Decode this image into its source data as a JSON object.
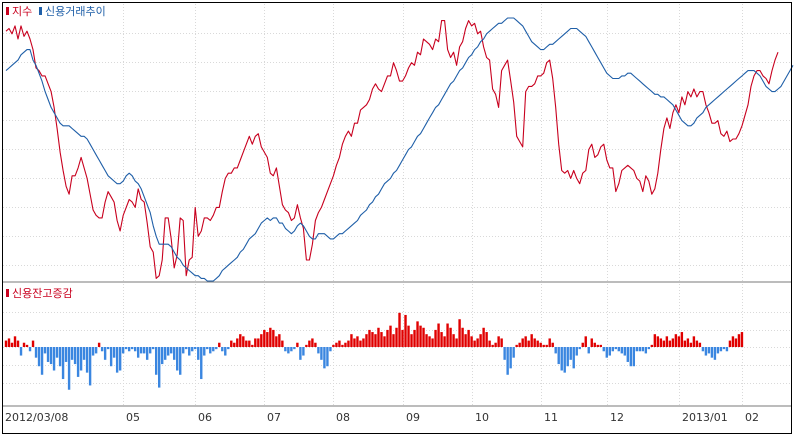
{
  "colors": {
    "index_line": "#c8001e",
    "credit_line": "#1f5fa8",
    "pos_bar": "#e00000",
    "neg_bar": "#3a86e0",
    "grid": "#d9d9d9",
    "frame": "#000000",
    "divider": "#7a7a7a"
  },
  "chart_data": [
    {
      "type": "line",
      "legend_placement": "top-left",
      "grid": true,
      "x_ticks": [
        "2012/03/08",
        "05",
        "06",
        "07",
        "08",
        "09",
        "10",
        "11",
        "12",
        "2013/01",
        "02"
      ],
      "x_tick_index": [
        0,
        39,
        63,
        86,
        109,
        132,
        155,
        178,
        200,
        224,
        245
      ],
      "ylim": [
        0,
        100
      ],
      "series": [
        {
          "name": "지수",
          "values": [
            95,
            96,
            94,
            97,
            92,
            97,
            93,
            95,
            92,
            88,
            81,
            80,
            78,
            78,
            75,
            72,
            66,
            58,
            49,
            42,
            36,
            33,
            40,
            40,
            43,
            47,
            43,
            39,
            33,
            27,
            25,
            24,
            24,
            30,
            34,
            32,
            30,
            23,
            19,
            25,
            28,
            31,
            30,
            28,
            35,
            31,
            30,
            22,
            13,
            11,
            1,
            2,
            8,
            24,
            24,
            16,
            5,
            10,
            24,
            23,
            2,
            8,
            9,
            28,
            17,
            19,
            24,
            24,
            23,
            25,
            28,
            28,
            34,
            39,
            41,
            41,
            43,
            43,
            46,
            49,
            52,
            55,
            52,
            55,
            56,
            51,
            49,
            47,
            41,
            40,
            43,
            36,
            29,
            27,
            26,
            23,
            24,
            29,
            24,
            20,
            8,
            8,
            14,
            23,
            26,
            28,
            31,
            34,
            37,
            40,
            44,
            47,
            52,
            55,
            57,
            55,
            60,
            60,
            65,
            66,
            67,
            69,
            73,
            75,
            73,
            72,
            75,
            78,
            78,
            83,
            80,
            76,
            76,
            78,
            81,
            83,
            82,
            87,
            86,
            92,
            91,
            90,
            88,
            92,
            91,
            99,
            99,
            88,
            85,
            87,
            82,
            89,
            91,
            96,
            99,
            97,
            98,
            94,
            95,
            89,
            85,
            84,
            73,
            71,
            66,
            80,
            82,
            84,
            76,
            68,
            55,
            53,
            51,
            72,
            74,
            74,
            75,
            78,
            78,
            79,
            83,
            84,
            77,
            66,
            52,
            42,
            41,
            42,
            39,
            42,
            39,
            37,
            41,
            42,
            50,
            52,
            47,
            48,
            51,
            52,
            46,
            43,
            43,
            34,
            37,
            42,
            43,
            44,
            43,
            42,
            39,
            38,
            34,
            40,
            38,
            33,
            35,
            41,
            50,
            58,
            62,
            58,
            64,
            67,
            64,
            70,
            67,
            72,
            70,
            73,
            70,
            72,
            72,
            67,
            64,
            60,
            60,
            61,
            56,
            55,
            57,
            53,
            54,
            54,
            56,
            59,
            63,
            67,
            74,
            78,
            80,
            80,
            78,
            77,
            75,
            80,
            84,
            87
          ],
          "color_key": "index_line"
        },
        {
          "name": "신용거래추이",
          "values": [
            80,
            81,
            82,
            83,
            84,
            86,
            87,
            88,
            88,
            84,
            82,
            79,
            76,
            72,
            69,
            66,
            64,
            62,
            60,
            59,
            59,
            59,
            58,
            57,
            56,
            55,
            55,
            54,
            52,
            50,
            48,
            46,
            44,
            42,
            40,
            39,
            38,
            37,
            37,
            38,
            40,
            41,
            40,
            38,
            37,
            35,
            32,
            29,
            26,
            21,
            17,
            14,
            14,
            14,
            14,
            13,
            11,
            9,
            8,
            6,
            5,
            4,
            3,
            2,
            2,
            1,
            1,
            0,
            0,
            0,
            1,
            2,
            4,
            5,
            6,
            7,
            8,
            9,
            11,
            12,
            14,
            16,
            17,
            18,
            20,
            22,
            23,
            24,
            23,
            24,
            24,
            22,
            22,
            20,
            19,
            18,
            19,
            21,
            22,
            21,
            19,
            17,
            16,
            16,
            18,
            18,
            18,
            17,
            16,
            16,
            17,
            18,
            18,
            19,
            20,
            21,
            22,
            23,
            25,
            26,
            27,
            29,
            30,
            32,
            33,
            35,
            37,
            38,
            39,
            41,
            42,
            44,
            46,
            48,
            50,
            51,
            53,
            55,
            56,
            58,
            60,
            62,
            64,
            66,
            67,
            69,
            71,
            73,
            75,
            76,
            78,
            80,
            81,
            83,
            85,
            86,
            88,
            89,
            91,
            92,
            94,
            95,
            96,
            97,
            98,
            98,
            99,
            100,
            100,
            100,
            99,
            98,
            97,
            95,
            93,
            91,
            90,
            89,
            88,
            88,
            89,
            90,
            90,
            91,
            92,
            93,
            94,
            95,
            96,
            96,
            96,
            95,
            94,
            93,
            91,
            89,
            87,
            85,
            83,
            81,
            79,
            78,
            77,
            77,
            77,
            78,
            78,
            79,
            79,
            78,
            77,
            76,
            75,
            74,
            73,
            72,
            71,
            71,
            70,
            70,
            69,
            68,
            67,
            65,
            63,
            61,
            60,
            59,
            59,
            60,
            62,
            63,
            64,
            66,
            67,
            68,
            69,
            70,
            71,
            72,
            73,
            74,
            75,
            76,
            77,
            78,
            79,
            80,
            80,
            80,
            79,
            78,
            76,
            74,
            73,
            72,
            72,
            73,
            74,
            76,
            78,
            80,
            82
          ],
          "color_key": "credit_line"
        }
      ]
    },
    {
      "type": "bar",
      "legend_placement": "top-left",
      "grid": true,
      "x_ticks": [
        "2012/03/08",
        "05",
        "06",
        "07",
        "08",
        "09",
        "10",
        "11",
        "12",
        "2013/01",
        "02"
      ],
      "ylim": [
        -2.2,
        2.2
      ],
      "series": [
        {
          "name": "신용잔고증감",
          "values": [
            0.3,
            0.4,
            0.2,
            0.5,
            0.3,
            -0.4,
            0.2,
            0.1,
            -0.2,
            0.3,
            -0.5,
            -0.9,
            -1.3,
            -0.3,
            -0.7,
            -0.8,
            -1.1,
            -0.5,
            -0.9,
            -1.5,
            -0.7,
            -2.0,
            -0.6,
            -0.8,
            -1.4,
            -1.1,
            -0.6,
            -1.2,
            -1.8,
            -0.4,
            -0.3,
            0.2,
            -0.2,
            -0.6,
            -0.1,
            -0.9,
            -0.5,
            -1.2,
            -1.1,
            -0.3,
            -0.1,
            -0.2,
            -0.1,
            -0.2,
            -0.5,
            -0.3,
            -0.3,
            -0.6,
            -0.3,
            -0.1,
            -1.3,
            -1.9,
            -0.8,
            -0.6,
            -0.4,
            -0.3,
            -0.6,
            -1.1,
            -1.3,
            -0.3,
            -0.1,
            -0.4,
            -0.2,
            -0.1,
            -0.6,
            -1.5,
            -0.4,
            -0.1,
            -0.3,
            -0.2,
            -0.1,
            0.2,
            -0.2,
            -0.4,
            -0.1,
            0.3,
            0.2,
            0.4,
            0.6,
            0.5,
            0.3,
            0.3,
            0.1,
            0.4,
            0.4,
            0.6,
            0.8,
            0.7,
            0.9,
            0.8,
            0.5,
            0.6,
            0.3,
            -0.2,
            -0.3,
            -0.2,
            -0.1,
            0.2,
            -0.6,
            -0.4,
            0.1,
            0.3,
            0.4,
            0.2,
            -0.3,
            -0.6,
            -1.0,
            -0.9,
            -0.2,
            0.1,
            0.2,
            0.3,
            0.1,
            0.2,
            0.3,
            0.6,
            0.4,
            0.5,
            0.3,
            0.4,
            0.6,
            0.8,
            0.7,
            0.6,
            0.9,
            0.7,
            0.5,
            0.8,
            1.0,
            0.6,
            0.9,
            1.6,
            0.8,
            1.5,
            1.0,
            0.6,
            0.8,
            1.2,
            1.0,
            0.9,
            0.6,
            0.5,
            0.4,
            0.8,
            1.1,
            0.7,
            0.5,
            1.1,
            0.9,
            0.6,
            0.4,
            1.3,
            0.9,
            0.6,
            0.8,
            0.5,
            0.3,
            0.4,
            0.6,
            0.9,
            0.7,
            0.3,
            0.1,
            0.2,
            0.5,
            0.4,
            -0.6,
            -1.3,
            -1.0,
            -0.5,
            0.1,
            0.2,
            0.4,
            0.5,
            0.3,
            0.6,
            0.4,
            0.3,
            0.2,
            0.1,
            0.1,
            0.4,
            0.2,
            -0.3,
            -0.8,
            -1.1,
            -1.2,
            -0.9,
            -0.6,
            -1.0,
            -0.4,
            -0.1,
            0.2,
            0.5,
            -0.3,
            0.4,
            0.2,
            0.1,
            0.1,
            -0.2,
            -0.5,
            -0.4,
            -0.2,
            -0.1,
            -0.2,
            -0.3,
            -0.4,
            -0.7,
            -0.9,
            -0.9,
            -0.2,
            -0.2,
            -0.2,
            -0.3,
            -0.1,
            0.1,
            0.6,
            0.5,
            0.4,
            0.3,
            0.5,
            0.3,
            0.4,
            0.6,
            0.5,
            0.7,
            0.3,
            0.4,
            0.2,
            0.5,
            0.3,
            0.2,
            -0.2,
            -0.4,
            -0.3,
            -0.5,
            -0.6,
            -0.3,
            -0.2,
            -0.1,
            -0.2,
            0.3,
            0.5,
            0.4,
            0.6,
            0.7
          ],
          "color_key": "pos_bar"
        }
      ]
    }
  ]
}
